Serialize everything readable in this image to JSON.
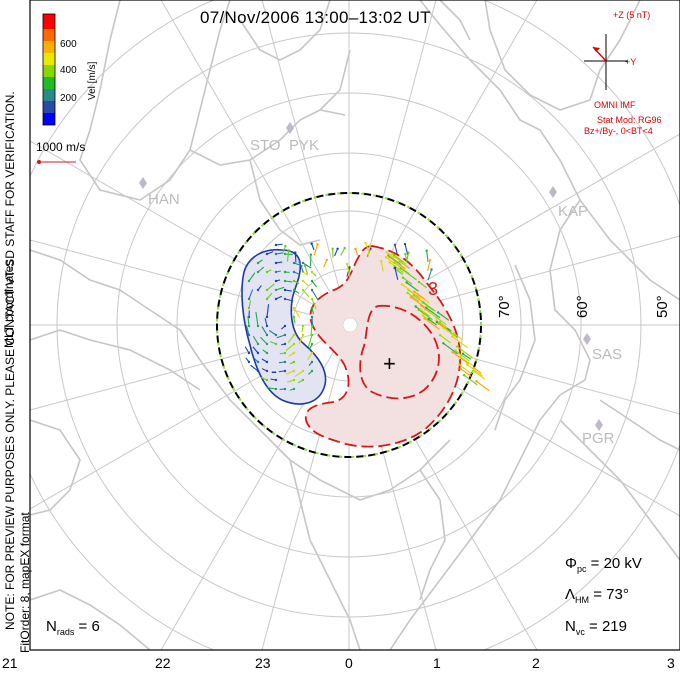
{
  "title": "07/Nov/2006 13:00–13:02 UT",
  "velocity_scale": {
    "title": "Vel [m/s]",
    "ticks": [
      "600",
      "400",
      "200"
    ],
    "colors": [
      "#ff0000",
      "#ff6a00",
      "#ffb000",
      "#e8e800",
      "#88d800",
      "#22bb22",
      "#2a8a8a",
      "#2a4aaa",
      "#0000ff"
    ]
  },
  "coordinate_system": "MLT coordinates",
  "reference_vector": "1000 m/s",
  "notes": {
    "preview": "NOTE: FOR PREVIEW PURPOSES ONLY. PLEASE CONTACT VT-SD STAFF FOR VERIFICATION.",
    "fit": "FitOrder: 8, mapEX format"
  },
  "imf": {
    "bz_label": "+Z (5 nT)",
    "by_label": "+Y",
    "source": "OMNI IMF",
    "stat_model": "Stat Mod: RG96",
    "condition": "Bz+/By-, 0<BT<4"
  },
  "stats": {
    "phi_pc_sym": "Φ",
    "phi_pc_sub": "pc",
    "phi_pc_val": "= 20 kV",
    "lambda_sym": "Λ",
    "lambda_sub": "HM",
    "lambda_val": "= 73°",
    "nvc_sym": "N",
    "nvc_sub": "vc",
    "nvc_val": "= 219",
    "nrads_sym": "N",
    "nrads_sub": "rads",
    "nrads_val": "= 6"
  },
  "latitudes": [
    "70°",
    "60°",
    "50°"
  ],
  "mlt_labels": [
    "21",
    "22",
    "23",
    "0",
    "1",
    "2",
    "3"
  ],
  "contours": {
    "negative": "-",
    "positive": "+",
    "pos_max": "3"
  },
  "sites": [
    "STO",
    "PYK",
    "HAN",
    "KAP",
    "SAS",
    "PGR"
  ],
  "colors": {
    "land": "#c6c6c6",
    "grid": "#c8c8c8",
    "positive": "#d81818",
    "negative": "#1c3aa0",
    "hmb_dash1": "#000000",
    "hmb_dash2": "#90e040",
    "annot": "#dd0000"
  }
}
